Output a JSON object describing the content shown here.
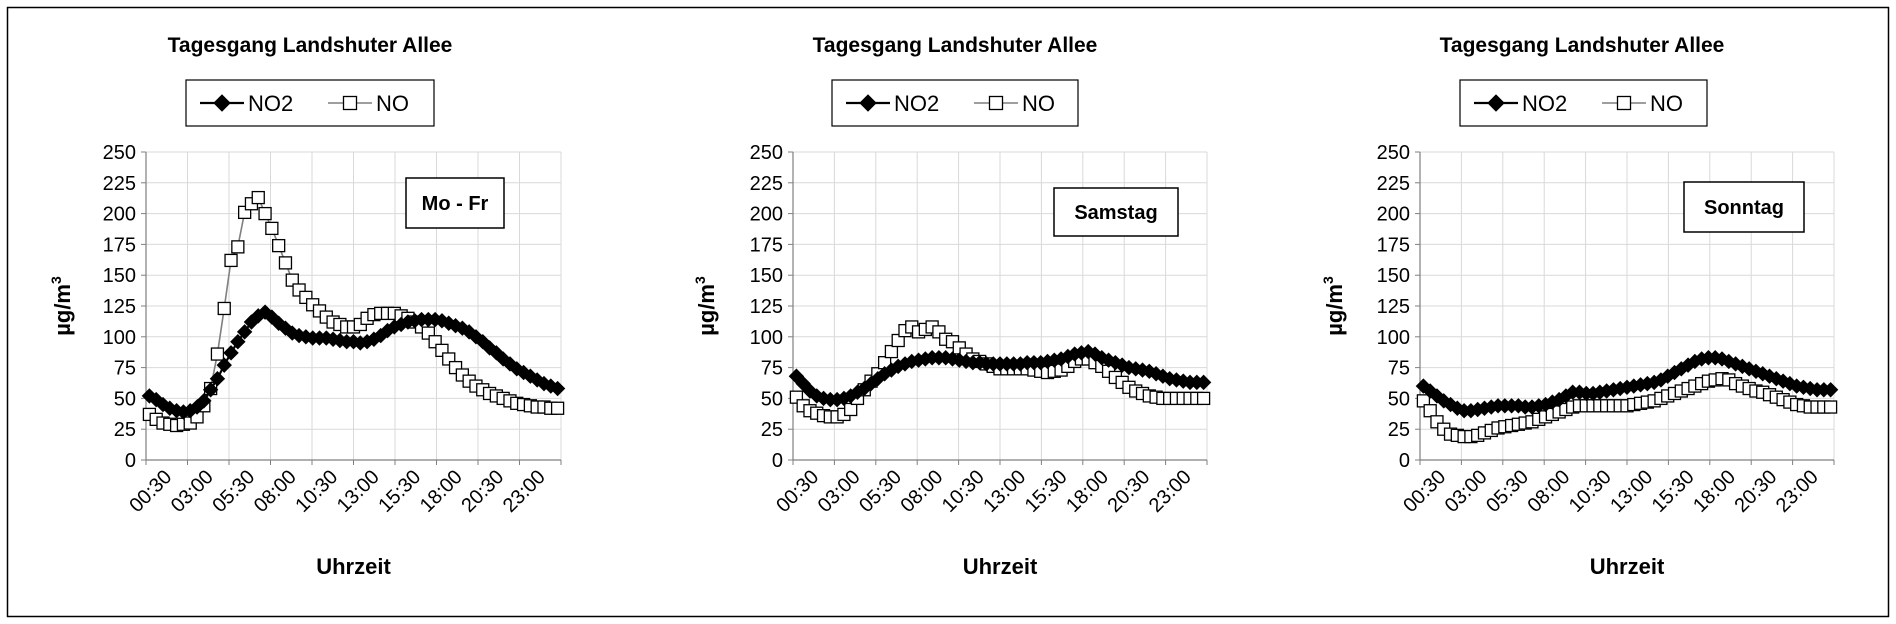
{
  "chart_data": [
    {
      "type": "line",
      "title": "Tagesgang Landshuter Allee",
      "annotation": "Mo - Fr",
      "xlabel": "Uhrzeit",
      "ylabel": "µg/m",
      "ylabel_sup": "3",
      "ylim": [
        0,
        250
      ],
      "yticks": [
        "0",
        "25",
        "50",
        "75",
        "100",
        "125",
        "150",
        "175",
        "200",
        "225",
        "250"
      ],
      "xticks": [
        "00:30",
        "03:00",
        "05:30",
        "08:00",
        "10:30",
        "13:00",
        "15:30",
        "18:00",
        "20:30",
        "23:00"
      ],
      "grid": true,
      "legend": "top-left",
      "series": [
        {
          "name": "NO2",
          "marker": "filled-diamond",
          "values": [
            52,
            49,
            45,
            42,
            40,
            39,
            40,
            43,
            48,
            57,
            66,
            77,
            87,
            96,
            104,
            112,
            117,
            120,
            116,
            111,
            107,
            103,
            101,
            100,
            99,
            99,
            99,
            98,
            97,
            96,
            96,
            95,
            96,
            98,
            101,
            105,
            108,
            110,
            112,
            113,
            114,
            114,
            114,
            113,
            111,
            109,
            107,
            104,
            100,
            96,
            91,
            87,
            82,
            78,
            74,
            71,
            68,
            65,
            62,
            60,
            58
          ]
        },
        {
          "name": "NO",
          "marker": "open-square",
          "values": [
            37,
            33,
            30,
            29,
            28,
            29,
            30,
            35,
            44,
            58,
            86,
            123,
            162,
            173,
            201,
            208,
            213,
            200,
            188,
            174,
            160,
            146,
            138,
            132,
            126,
            121,
            116,
            112,
            110,
            108,
            108,
            110,
            115,
            118,
            119,
            119,
            119,
            117,
            115,
            112,
            108,
            103,
            96,
            89,
            82,
            75,
            69,
            64,
            60,
            57,
            54,
            52,
            50,
            48,
            46,
            45,
            44,
            43,
            43,
            42,
            42
          ]
        }
      ]
    },
    {
      "type": "line",
      "title": "Tagesgang Landshuter Allee",
      "annotation": "Samstag",
      "xlabel": "Uhrzeit",
      "ylabel": "µg/m",
      "ylabel_sup": "3",
      "ylim": [
        0,
        250
      ],
      "yticks": [
        "0",
        "25",
        "50",
        "75",
        "100",
        "125",
        "150",
        "175",
        "200",
        "225",
        "250"
      ],
      "xticks": [
        "00:30",
        "03:00",
        "05:30",
        "08:00",
        "10:30",
        "13:00",
        "15:30",
        "18:00",
        "20:30",
        "23:00"
      ],
      "grid": true,
      "legend": "top-left",
      "series": [
        {
          "name": "NO2",
          "marker": "filled-diamond",
          "values": [
            68,
            62,
            56,
            52,
            50,
            49,
            49,
            50,
            52,
            55,
            58,
            62,
            66,
            70,
            73,
            76,
            78,
            80,
            81,
            82,
            83,
            83,
            83,
            82,
            81,
            80,
            79,
            79,
            78,
            78,
            78,
            78,
            78,
            78,
            79,
            79,
            79,
            80,
            81,
            82,
            84,
            86,
            87,
            88,
            86,
            83,
            81,
            79,
            77,
            75,
            74,
            73,
            72,
            70,
            68,
            66,
            65,
            64,
            63,
            63,
            63
          ]
        },
        {
          "name": "NO",
          "marker": "open-square",
          "values": [
            51,
            44,
            40,
            38,
            36,
            35,
            35,
            37,
            41,
            50,
            57,
            64,
            70,
            79,
            88,
            97,
            105,
            108,
            104,
            106,
            108,
            104,
            98,
            96,
            91,
            86,
            82,
            80,
            78,
            76,
            74,
            74,
            74,
            74,
            74,
            73,
            72,
            71,
            72,
            73,
            76,
            80,
            82,
            82,
            79,
            76,
            72,
            67,
            63,
            59,
            56,
            54,
            52,
            51,
            50,
            50,
            50,
            50,
            50,
            50,
            50
          ]
        }
      ]
    },
    {
      "type": "line",
      "title": "Tagesgang Landshuter Allee",
      "annotation": "Sonntag",
      "xlabel": "Uhrzeit",
      "ylabel": "µg/m",
      "ylabel_sup": "3",
      "ylim": [
        0,
        250
      ],
      "yticks": [
        "0",
        "25",
        "50",
        "75",
        "100",
        "125",
        "150",
        "175",
        "200",
        "225",
        "250"
      ],
      "xticks": [
        "00:30",
        "03:00",
        "05:30",
        "08:00",
        "10:30",
        "13:00",
        "15:30",
        "18:00",
        "20:30",
        "23:00"
      ],
      "grid": true,
      "legend": "top-left",
      "series": [
        {
          "name": "NO2",
          "marker": "filled-diamond",
          "values": [
            60,
            56,
            52,
            48,
            45,
            42,
            40,
            40,
            41,
            42,
            43,
            44,
            44,
            44,
            44,
            43,
            43,
            44,
            45,
            47,
            49,
            52,
            55,
            55,
            54,
            54,
            55,
            56,
            57,
            58,
            59,
            60,
            61,
            62,
            63,
            65,
            68,
            71,
            74,
            77,
            80,
            82,
            83,
            83,
            82,
            80,
            78,
            76,
            74,
            72,
            70,
            68,
            66,
            64,
            62,
            60,
            59,
            58,
            57,
            57,
            57
          ]
        },
        {
          "name": "NO",
          "marker": "open-square",
          "values": [
            48,
            40,
            31,
            25,
            21,
            20,
            19,
            19,
            20,
            22,
            24,
            26,
            27,
            28,
            29,
            30,
            31,
            33,
            35,
            37,
            39,
            41,
            43,
            44,
            44,
            44,
            44,
            44,
            44,
            44,
            44,
            45,
            46,
            47,
            48,
            50,
            52,
            54,
            56,
            58,
            60,
            62,
            64,
            65,
            66,
            65,
            62,
            60,
            58,
            56,
            55,
            53,
            51,
            49,
            47,
            45,
            44,
            43,
            43,
            43,
            43
          ]
        }
      ]
    }
  ]
}
